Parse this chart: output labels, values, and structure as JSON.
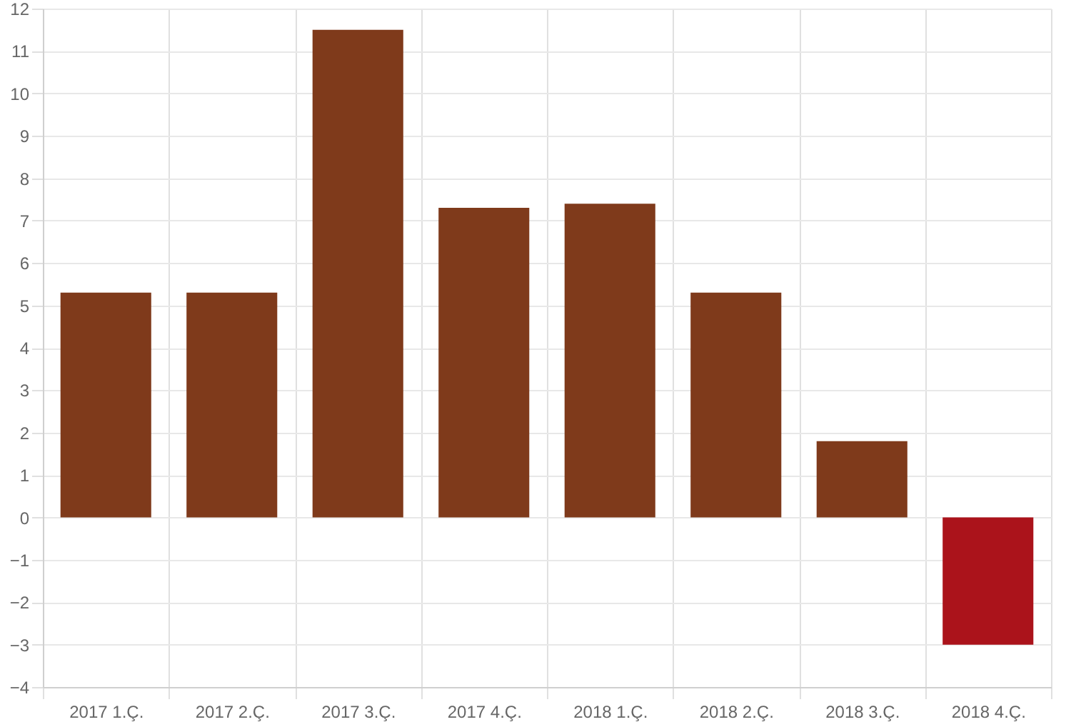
{
  "chart_data": {
    "type": "bar",
    "categories": [
      "2017 1.Ç.",
      "2017 2.Ç.",
      "2017 3.Ç.",
      "2017 4.Ç.",
      "2018 1.Ç.",
      "2018 2.Ç.",
      "2018 3.Ç.",
      "2018 4.Ç."
    ],
    "values": [
      5.3,
      5.3,
      11.5,
      7.3,
      7.4,
      5.3,
      1.8,
      -3.0
    ],
    "colors": [
      "#7f3a1b",
      "#7f3a1b",
      "#7f3a1b",
      "#7f3a1b",
      "#7f3a1b",
      "#7f3a1b",
      "#7f3a1b",
      "#ab131b"
    ],
    "ylim": [
      -4,
      12
    ],
    "yticks": [
      -4,
      -3,
      -2,
      -1,
      0,
      1,
      2,
      3,
      4,
      5,
      6,
      7,
      8,
      9,
      10,
      11,
      12
    ],
    "grid": true
  }
}
